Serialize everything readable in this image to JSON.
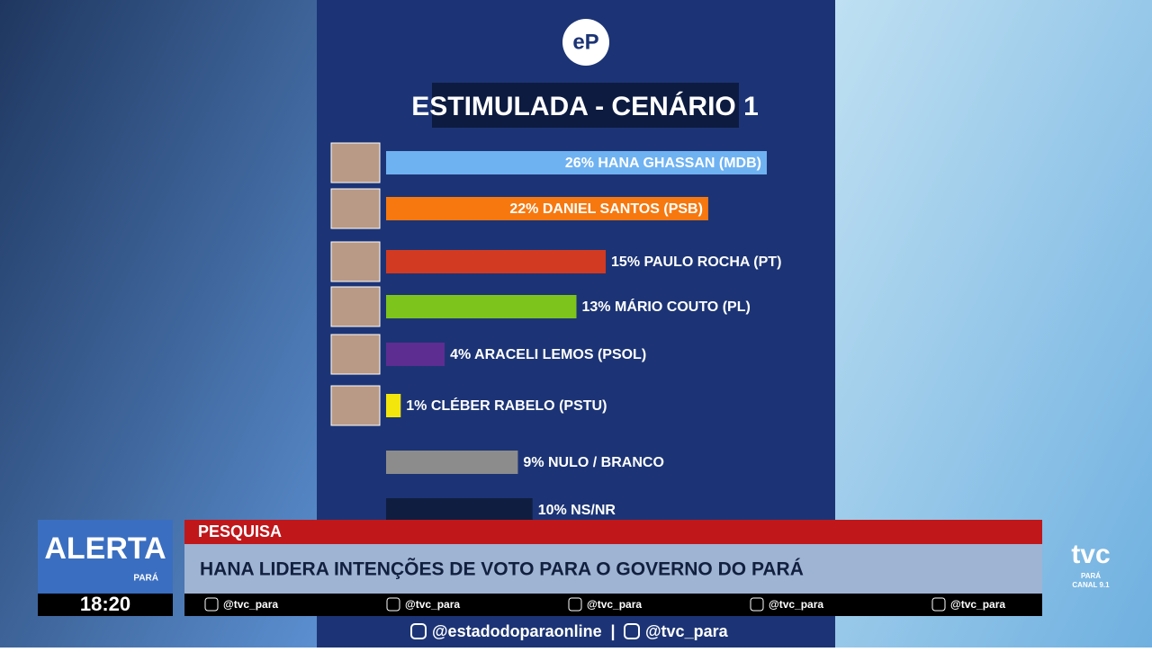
{
  "chart_data": {
    "type": "bar",
    "orientation": "horizontal",
    "title": "ESTIMULADA - CENÁRIO 1",
    "categories": [
      "HANA GHASSAN (MDB)",
      "DANIEL SANTOS (PSB)",
      "PAULO ROCHA (PT)",
      "MÁRIO COUTO (PL)",
      "ARACELI LEMOS (PSOL)",
      "CLÉBER RABELO (PSTU)",
      "NULO / BRANCO",
      "NS/NR"
    ],
    "values": [
      26,
      22,
      15,
      13,
      4,
      1,
      9,
      10
    ],
    "value_labels": [
      "26%",
      "22%",
      "15%",
      "13%",
      "4%",
      "1%",
      "9%",
      "10%"
    ],
    "colors": [
      "#6fb2f2",
      "#f7780f",
      "#d33a22",
      "#7dc41c",
      "#5d2d91",
      "#f3e60d",
      "#8c8c8c",
      "#0f1e40"
    ]
  },
  "logo": "eP",
  "banner": {
    "tag": "PESQUISA",
    "headline": "HANA LIDERA INTENÇÕES DE VOTO PARA O GOVERNO DO PARÁ",
    "program": "ALERTA",
    "program_region": "PARÁ",
    "time": "18:20",
    "socials": [
      "@tvc_para",
      "@tvc_para",
      "@tvc_para",
      "@tvc_para",
      "@tvc_para"
    ]
  },
  "channel": {
    "name": "tvc",
    "region": "PARÁ",
    "channel": "CANAL 9.1"
  },
  "footer": {
    "left": "@estadodoparaonline",
    "right": "@tvc_para"
  }
}
